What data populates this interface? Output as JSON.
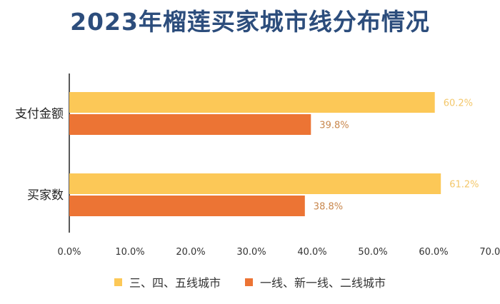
{
  "chart_data": {
    "type": "bar",
    "orientation": "horizontal",
    "title": "2023年榴莲买家城市线分布情况",
    "categories": [
      "支付金额",
      "买家数"
    ],
    "series": [
      {
        "name": "三、四、五线城市",
        "values": [
          60.2,
          61.2
        ],
        "labels": [
          "60.2%",
          "61.2%"
        ],
        "color": "#fcc857",
        "label_color": "#f3c76a"
      },
      {
        "name": "一线、新一线、二线城市",
        "values": [
          39.8,
          38.8
        ],
        "labels": [
          "39.8%",
          "38.8%"
        ],
        "color": "#ec7434",
        "label_color": "#c8874d"
      }
    ],
    "xlim": [
      0,
      70
    ],
    "xticks": [
      "0.0%",
      "10.0%",
      "20.0%",
      "30.0%",
      "40.0%",
      "50.0%",
      "60.0%",
      "70.0%"
    ],
    "grid": false,
    "legend": "bottom-center"
  }
}
